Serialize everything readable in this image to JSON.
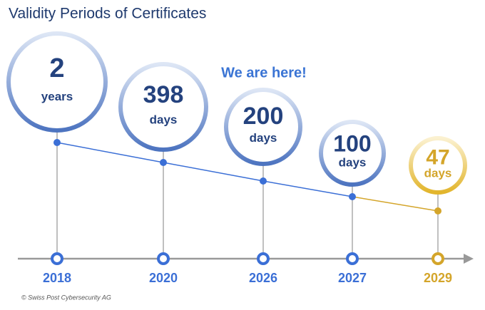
{
  "header": {
    "title": "Validity Periods of Certificates"
  },
  "annotation": "We are here!",
  "items": [
    {
      "year": "2018",
      "value": 2,
      "unit": "years",
      "color": "#3b6fd6"
    },
    {
      "year": "2020",
      "value": 398,
      "unit": "days",
      "color": "#3b6fd6"
    },
    {
      "year": "2026",
      "value": 200,
      "unit": "days",
      "color": "#3b6fd6"
    },
    {
      "year": "2027",
      "value": 100,
      "unit": "days",
      "color": "#3b6fd6"
    },
    {
      "year": "2029",
      "value": 47,
      "unit": "days",
      "color": "#d4a52a"
    }
  ],
  "footer": {
    "credit": "© Swiss Post Cybersecurity AG"
  }
}
